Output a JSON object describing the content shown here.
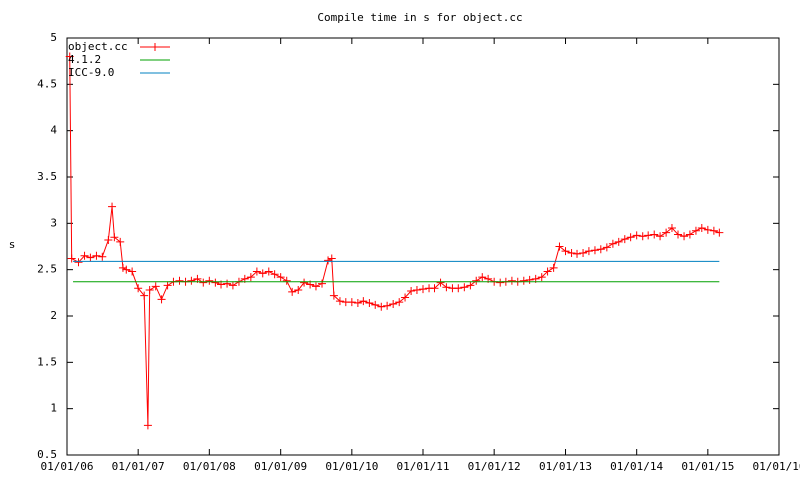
{
  "chart_data": {
    "type": "line",
    "title": "Compile time in s for object.cc",
    "ylabel": "s",
    "xlim": [
      "2006-01-01",
      "2016-01-01"
    ],
    "xticks": [
      {
        "value": "2006-01-01",
        "label": "01/01/06"
      },
      {
        "value": "2007-01-01",
        "label": "01/01/07"
      },
      {
        "value": "2008-01-01",
        "label": "01/01/08"
      },
      {
        "value": "2009-01-01",
        "label": "01/01/09"
      },
      {
        "value": "2010-01-01",
        "label": "01/01/10"
      },
      {
        "value": "2011-01-01",
        "label": "01/01/11"
      },
      {
        "value": "2012-01-01",
        "label": "01/01/12"
      },
      {
        "value": "2013-01-01",
        "label": "01/01/13"
      },
      {
        "value": "2014-01-01",
        "label": "01/01/14"
      },
      {
        "value": "2015-01-01",
        "label": "01/01/15"
      },
      {
        "value": "2016-01-01",
        "label": "01/01/16"
      }
    ],
    "ylim": [
      0.5,
      5
    ],
    "yticks": [
      0.5,
      1,
      1.5,
      2,
      2.5,
      3,
      3.5,
      4,
      4.5,
      5
    ],
    "legend": "top-left",
    "series": [
      {
        "name": "object.cc",
        "color": "#ff0000",
        "markers": true,
        "x": [
          "2006-01-15",
          "2006-01-25",
          "2006-03-01",
          "2006-04-01",
          "2006-05-01",
          "2006-06-01",
          "2006-07-01",
          "2006-08-01",
          "2006-08-20",
          "2006-09-01",
          "2006-10-01",
          "2006-10-15",
          "2006-11-01",
          "2006-12-01",
          "2007-01-01",
          "2007-02-01",
          "2007-02-20",
          "2007-03-01",
          "2007-04-01",
          "2007-05-01",
          "2007-06-01",
          "2007-07-01",
          "2007-08-01",
          "2007-09-01",
          "2007-10-01",
          "2007-11-01",
          "2007-12-01",
          "2008-01-01",
          "2008-02-01",
          "2008-03-01",
          "2008-04-01",
          "2008-05-01",
          "2008-06-01",
          "2008-07-01",
          "2008-08-01",
          "2008-09-01",
          "2008-10-01",
          "2008-11-01",
          "2008-12-01",
          "2009-01-01",
          "2009-02-01",
          "2009-03-01",
          "2009-04-01",
          "2009-05-01",
          "2009-06-01",
          "2009-07-01",
          "2009-08-01",
          "2009-09-01",
          "2009-09-20",
          "2009-10-01",
          "2009-11-01",
          "2009-12-01",
          "2010-01-01",
          "2010-02-01",
          "2010-03-01",
          "2010-04-01",
          "2010-05-01",
          "2010-06-01",
          "2010-07-01",
          "2010-08-01",
          "2010-09-01",
          "2010-10-01",
          "2010-11-01",
          "2010-12-01",
          "2011-01-01",
          "2011-02-01",
          "2011-03-01",
          "2011-04-01",
          "2011-05-01",
          "2011-06-01",
          "2011-07-01",
          "2011-08-01",
          "2011-09-01",
          "2011-10-01",
          "2011-11-01",
          "2011-12-01",
          "2012-01-01",
          "2012-02-01",
          "2012-03-01",
          "2012-04-01",
          "2012-05-01",
          "2012-06-01",
          "2012-07-01",
          "2012-08-01",
          "2012-09-01",
          "2012-10-01",
          "2012-11-01",
          "2012-12-01",
          "2013-01-01",
          "2013-02-01",
          "2013-03-01",
          "2013-04-01",
          "2013-05-01",
          "2013-06-01",
          "2013-07-01",
          "2013-08-01",
          "2013-09-01",
          "2013-10-01",
          "2013-11-01",
          "2013-12-01",
          "2014-01-01",
          "2014-02-01",
          "2014-03-01",
          "2014-04-01",
          "2014-05-01",
          "2014-06-01",
          "2014-07-01",
          "2014-08-01",
          "2014-09-01",
          "2014-10-01",
          "2014-11-01",
          "2014-12-01",
          "2015-01-01",
          "2015-02-01",
          "2015-03-01"
        ],
        "values": [
          4.8,
          2.62,
          2.58,
          2.65,
          2.63,
          2.65,
          2.64,
          2.82,
          3.18,
          2.85,
          2.8,
          2.52,
          2.5,
          2.48,
          2.3,
          2.22,
          0.82,
          2.28,
          2.32,
          2.18,
          2.33,
          2.37,
          2.38,
          2.37,
          2.38,
          2.4,
          2.36,
          2.38,
          2.36,
          2.34,
          2.35,
          2.33,
          2.37,
          2.4,
          2.42,
          2.48,
          2.46,
          2.48,
          2.45,
          2.42,
          2.38,
          2.26,
          2.28,
          2.36,
          2.34,
          2.32,
          2.35,
          2.6,
          2.62,
          2.22,
          2.16,
          2.15,
          2.15,
          2.14,
          2.16,
          2.14,
          2.12,
          2.1,
          2.11,
          2.13,
          2.15,
          2.2,
          2.27,
          2.28,
          2.29,
          2.3,
          2.3,
          2.36,
          2.31,
          2.3,
          2.3,
          2.31,
          2.33,
          2.38,
          2.42,
          2.4,
          2.37,
          2.36,
          2.37,
          2.38,
          2.37,
          2.38,
          2.39,
          2.4,
          2.42,
          2.48,
          2.52,
          2.75,
          2.7,
          2.68,
          2.67,
          2.68,
          2.7,
          2.71,
          2.72,
          2.74,
          2.78,
          2.8,
          2.83,
          2.85,
          2.87,
          2.86,
          2.87,
          2.88,
          2.86,
          2.9,
          2.95,
          2.88,
          2.86,
          2.88,
          2.92,
          2.95,
          2.93,
          2.92,
          2.9
        ]
      },
      {
        "name": "4.1.2",
        "color": "#00a000",
        "markers": false,
        "x": [
          "2006-02-01",
          "2015-03-01"
        ],
        "values": [
          2.37,
          2.37
        ]
      },
      {
        "name": "ICC-9.0",
        "color": "#0080c0",
        "markers": false,
        "x": [
          "2006-02-01",
          "2015-03-01"
        ],
        "values": [
          2.59,
          2.59
        ]
      }
    ]
  }
}
